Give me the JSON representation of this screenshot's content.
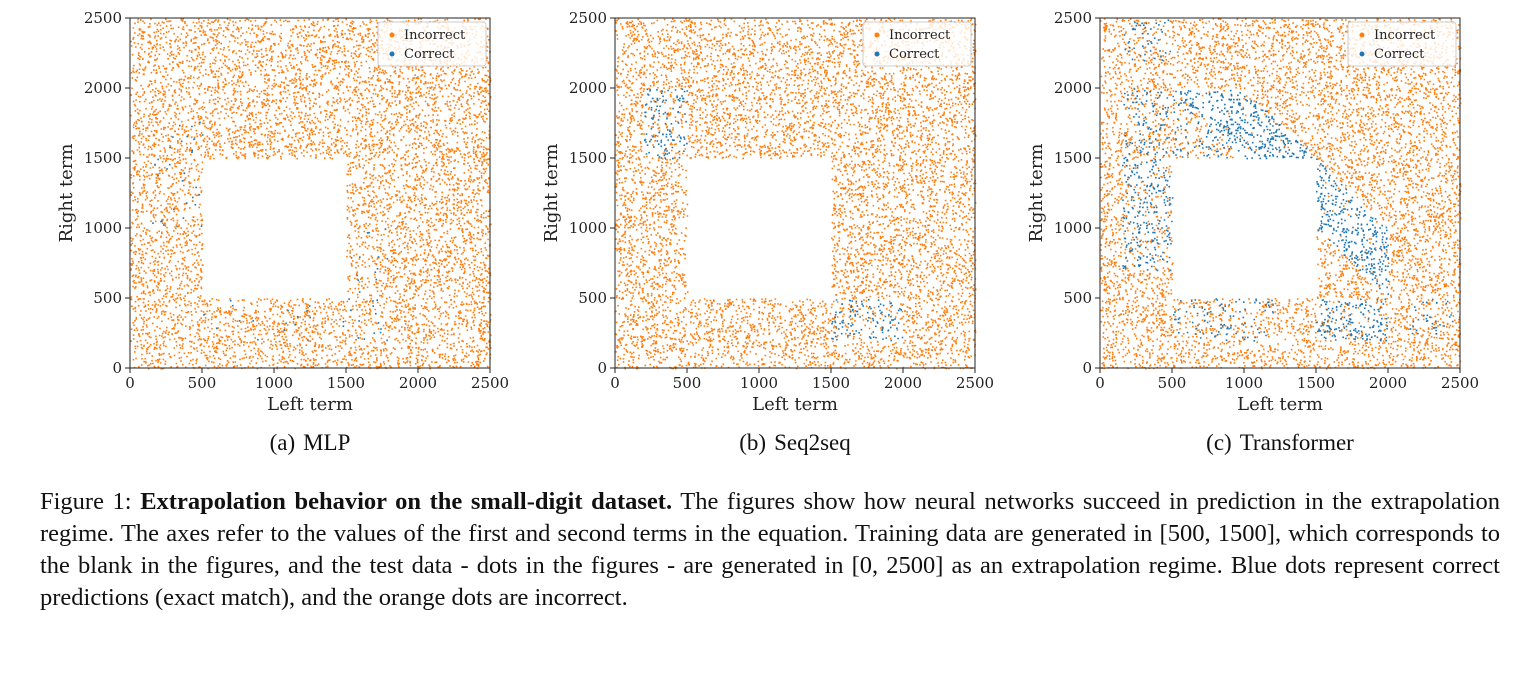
{
  "colors": {
    "incorrect": "#ff7f0e",
    "correct": "#1f77b4"
  },
  "chart_data": [
    {
      "type": "scatter",
      "panel": "(a)",
      "subtitle": "MLP",
      "xlabel": "Left term",
      "ylabel": "Right term",
      "xlim": [
        0,
        2500
      ],
      "ylim": [
        0,
        2500
      ],
      "x_ticks": [
        0,
        500,
        1000,
        1500,
        2000,
        2500
      ],
      "y_ticks": [
        0,
        500,
        1000,
        1500,
        2000,
        2500
      ],
      "legend": [
        "Incorrect",
        "Correct"
      ],
      "legend_position": "top-right",
      "training_blank": [
        [
          500,
          1500
        ],
        [
          500,
          1500
        ]
      ],
      "test_range": [
        [
          0,
          2500
        ],
        [
          0,
          2500
        ]
      ],
      "correct_regions": [
        {
          "x": [
            150,
            500
          ],
          "y": [
            1000,
            1800
          ],
          "density": 0.06
        },
        {
          "x": [
            500,
            1500
          ],
          "y": [
            200,
            500
          ],
          "density": 0.05
        },
        {
          "x": [
            1500,
            1800
          ],
          "y": [
            200,
            1000
          ],
          "density": 0.06
        }
      ]
    },
    {
      "type": "scatter",
      "panel": "(b)",
      "subtitle": "Seq2seq",
      "xlabel": "Left term",
      "ylabel": "Right term",
      "xlim": [
        0,
        2500
      ],
      "ylim": [
        0,
        2500
      ],
      "x_ticks": [
        0,
        500,
        1000,
        1500,
        2000,
        2500
      ],
      "y_ticks": [
        0,
        500,
        1000,
        1500,
        2000,
        2500
      ],
      "legend": [
        "Incorrect",
        "Correct"
      ],
      "legend_position": "top-right",
      "training_blank": [
        [
          500,
          1500
        ],
        [
          500,
          1500
        ]
      ],
      "test_range": [
        [
          0,
          2500
        ],
        [
          0,
          2500
        ]
      ],
      "correct_regions": [
        {
          "x": [
            200,
            500
          ],
          "y": [
            1500,
            2000
          ],
          "density": 0.55
        },
        {
          "x": [
            1500,
            2000
          ],
          "y": [
            200,
            500
          ],
          "density": 0.55
        }
      ]
    },
    {
      "type": "scatter",
      "panel": "(c)",
      "subtitle": "Transformer",
      "xlabel": "Left term",
      "ylabel": "Right term",
      "xlim": [
        0,
        2500
      ],
      "ylim": [
        0,
        2500
      ],
      "x_ticks": [
        0,
        500,
        1000,
        1500,
        2000,
        2500
      ],
      "y_ticks": [
        0,
        500,
        1000,
        1500,
        2000,
        2500
      ],
      "legend": [
        "Incorrect",
        "Correct"
      ],
      "legend_position": "top-right",
      "training_blank": [
        [
          500,
          1500
        ],
        [
          500,
          1500
        ]
      ],
      "test_range": [
        [
          0,
          2500
        ],
        [
          0,
          2500
        ]
      ],
      "correct_regions": [
        {
          "x": [
            150,
            500
          ],
          "y": [
            700,
            1500
          ],
          "density": 0.6
        },
        {
          "x": [
            150,
            500
          ],
          "y": [
            1500,
            2000
          ],
          "density": 0.35
        },
        {
          "x": [
            150,
            500
          ],
          "y": [
            2200,
            2500
          ],
          "density": 0.3
        },
        {
          "x": [
            500,
            1000
          ],
          "y": [
            1500,
            2000
          ],
          "density": 0.3
        },
        {
          "x": [
            1500,
            2000
          ],
          "y": [
            200,
            500
          ],
          "density": 0.65
        },
        {
          "x": [
            500,
            1200
          ],
          "y": [
            200,
            500
          ],
          "density": 0.35
        },
        {
          "x": [
            2150,
            2450
          ],
          "y": [
            250,
            500
          ],
          "density": 0.3
        }
      ],
      "correct_diagonal_bands": [
        {
          "sum_range": [
            2500,
            3000
          ],
          "x": [
            500,
            2000
          ],
          "y": [
            500,
            2000
          ],
          "density": 0.9
        }
      ]
    }
  ],
  "captions": {
    "a": {
      "label": "(a)",
      "text": "MLP"
    },
    "b": {
      "label": "(b)",
      "text": "Seq2seq"
    },
    "c": {
      "label": "(c)",
      "text": "Transformer"
    }
  },
  "figure_caption": {
    "prefix": "Figure 1: ",
    "bold": "Extrapolation behavior on the small-digit dataset.",
    "body": " The figures show how neural networks succeed in prediction in the extrapolation regime. The axes refer to the values of the first and second terms in the equation. Training data are generated in [500, 1500], which corresponds to the blank in the figures, and the test data - dots in the figures - are generated in [0, 2500] as an extrapolation regime. Blue dots represent correct predictions (exact match), and the orange dots are incorrect."
  }
}
